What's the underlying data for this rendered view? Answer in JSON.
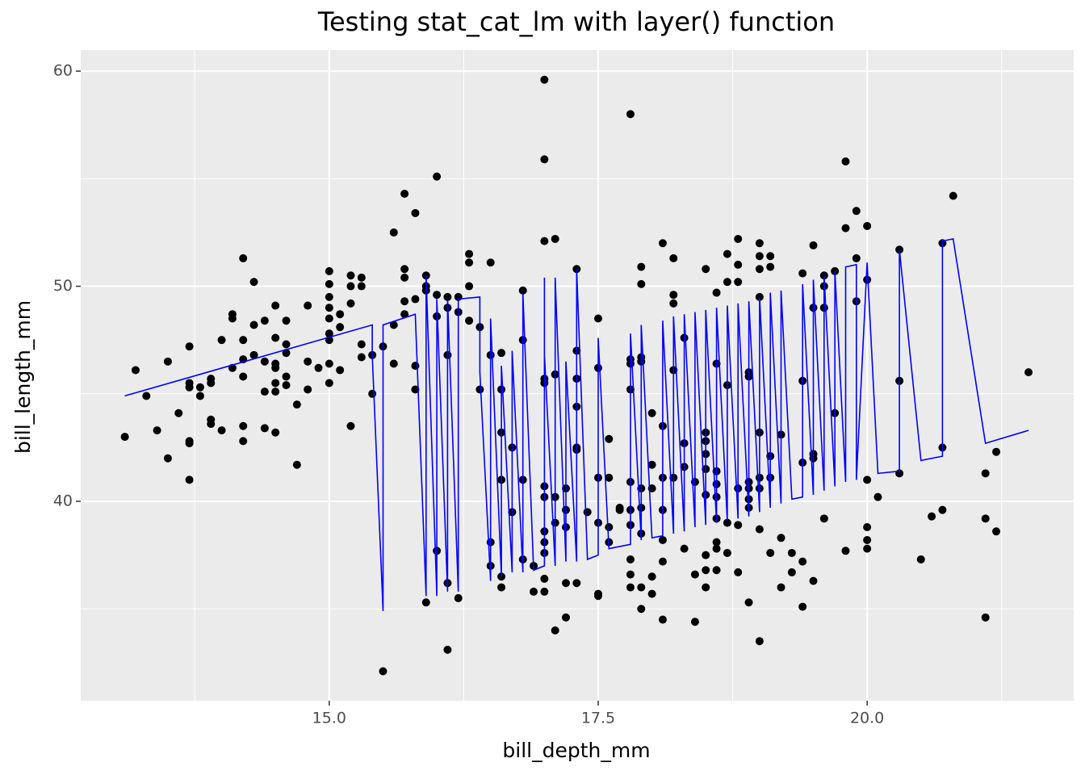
{
  "chart_data": {
    "type": "scatter",
    "title": "Testing stat_cat_lm with layer() function",
    "x_label": "bill_depth_mm",
    "y_label": "bill_length_mm",
    "xlim": [
      12.69,
      21.92
    ],
    "ylim": [
      30.73,
      60.98
    ],
    "xticks": [
      {
        "value": 15,
        "label": "15.0"
      },
      {
        "value": 17.5,
        "label": "17.5"
      },
      {
        "value": 20,
        "label": "20.0"
      }
    ],
    "yticks": [
      40,
      50,
      60
    ],
    "xminor": [
      13.75,
      16.25,
      18.75,
      21.25
    ],
    "yminor": [
      35,
      45,
      55
    ],
    "grid": true,
    "point_color": "#000000",
    "points": [
      [
        13.1,
        43.0
      ],
      [
        13.2,
        46.1
      ],
      [
        13.3,
        44.9
      ],
      [
        13.4,
        43.3
      ],
      [
        13.5,
        46.5
      ],
      [
        13.5,
        42.0
      ],
      [
        13.6,
        44.1
      ],
      [
        13.7,
        47.2
      ],
      [
        13.7,
        45.5
      ],
      [
        13.7,
        45.3
      ],
      [
        13.7,
        42.7
      ],
      [
        13.7,
        42.8
      ],
      [
        13.7,
        41.0
      ],
      [
        13.8,
        45.3
      ],
      [
        13.8,
        44.9
      ],
      [
        13.9,
        45.5
      ],
      [
        13.9,
        45.7
      ],
      [
        13.9,
        43.8
      ],
      [
        13.9,
        43.6
      ],
      [
        14.0,
        43.3
      ],
      [
        14.0,
        47.5
      ],
      [
        14.1,
        48.7
      ],
      [
        14.1,
        48.5
      ],
      [
        14.1,
        46.2
      ],
      [
        14.2,
        51.3
      ],
      [
        14.2,
        47.5
      ],
      [
        14.2,
        46.6
      ],
      [
        14.2,
        45.8
      ],
      [
        14.2,
        43.5
      ],
      [
        14.2,
        42.8
      ],
      [
        14.3,
        50.2
      ],
      [
        14.3,
        48.2
      ],
      [
        14.3,
        46.8
      ],
      [
        14.4,
        48.4
      ],
      [
        14.4,
        46.5
      ],
      [
        14.4,
        45.1
      ],
      [
        14.4,
        43.4
      ],
      [
        14.5,
        49.1
      ],
      [
        14.5,
        47.6
      ],
      [
        14.5,
        46.4
      ],
      [
        14.5,
        46.2
      ],
      [
        14.5,
        45.5
      ],
      [
        14.5,
        45.1
      ],
      [
        14.5,
        43.2
      ],
      [
        14.6,
        48.4
      ],
      [
        14.6,
        47.3
      ],
      [
        14.6,
        46.9
      ],
      [
        14.6,
        45.8
      ],
      [
        14.6,
        45.4
      ],
      [
        14.7,
        44.5
      ],
      [
        14.7,
        41.7
      ],
      [
        14.8,
        49.1
      ],
      [
        14.8,
        46.5
      ],
      [
        14.8,
        45.2
      ],
      [
        14.9,
        46.2
      ],
      [
        15.0,
        50.7
      ],
      [
        15.0,
        50.1
      ],
      [
        15.0,
        49.5
      ],
      [
        15.0,
        49.0
      ],
      [
        15.0,
        48.5
      ],
      [
        15.0,
        47.8
      ],
      [
        15.0,
        47.5
      ],
      [
        15.0,
        46.4
      ],
      [
        15.0,
        45.5
      ],
      [
        15.1,
        48.7
      ],
      [
        15.1,
        48.1
      ],
      [
        15.1,
        46.1
      ],
      [
        15.2,
        50.5
      ],
      [
        15.2,
        50.0
      ],
      [
        15.2,
        49.2
      ],
      [
        15.2,
        43.5
      ],
      [
        15.3,
        50.4
      ],
      [
        15.3,
        50.0
      ],
      [
        15.3,
        47.3
      ],
      [
        15.3,
        46.7
      ],
      [
        15.4,
        46.8
      ],
      [
        15.4,
        45.0
      ],
      [
        15.5,
        47.2
      ],
      [
        15.5,
        32.1
      ],
      [
        15.6,
        52.5
      ],
      [
        15.6,
        48.2
      ],
      [
        15.6,
        46.4
      ],
      [
        15.7,
        54.3
      ],
      [
        15.7,
        50.8
      ],
      [
        15.7,
        50.4
      ],
      [
        15.7,
        49.3
      ],
      [
        15.7,
        48.7
      ],
      [
        15.8,
        53.4
      ],
      [
        15.8,
        49.4
      ],
      [
        15.8,
        46.3
      ],
      [
        15.8,
        45.2
      ],
      [
        15.9,
        50.5
      ],
      [
        15.9,
        50.0
      ],
      [
        15.9,
        49.8
      ],
      [
        15.9,
        35.3
      ],
      [
        16.0,
        55.1
      ],
      [
        16.0,
        49.6
      ],
      [
        16.0,
        48.6
      ],
      [
        16.0,
        37.7
      ],
      [
        16.1,
        49.5
      ],
      [
        16.1,
        49.0
      ],
      [
        16.1,
        46.8
      ],
      [
        16.1,
        36.2
      ],
      [
        16.1,
        33.1
      ],
      [
        16.2,
        49.5
      ],
      [
        16.2,
        48.8
      ],
      [
        16.2,
        35.5
      ],
      [
        16.3,
        51.5
      ],
      [
        16.3,
        51.1
      ],
      [
        16.3,
        48.4
      ],
      [
        16.3,
        50.0
      ],
      [
        16.4,
        48.1
      ],
      [
        16.4,
        45.2
      ],
      [
        16.5,
        51.1
      ],
      [
        16.5,
        46.8
      ],
      [
        16.5,
        38.1
      ],
      [
        16.5,
        37.0
      ],
      [
        16.6,
        46.9
      ],
      [
        16.6,
        45.2
      ],
      [
        16.6,
        43.2
      ],
      [
        16.6,
        41.0
      ],
      [
        16.6,
        36.5
      ],
      [
        16.6,
        36.0
      ],
      [
        16.7,
        42.5
      ],
      [
        16.7,
        39.5
      ],
      [
        16.8,
        49.8
      ],
      [
        16.8,
        47.5
      ],
      [
        16.8,
        41.0
      ],
      [
        16.8,
        37.3
      ],
      [
        16.9,
        35.8
      ],
      [
        16.9,
        37.0
      ],
      [
        17.0,
        59.6
      ],
      [
        17.0,
        55.9
      ],
      [
        17.0,
        52.1
      ],
      [
        17.0,
        45.7
      ],
      [
        17.0,
        45.5
      ],
      [
        17.0,
        40.7
      ],
      [
        17.0,
        40.2
      ],
      [
        17.0,
        38.6
      ],
      [
        17.0,
        38.1
      ],
      [
        17.0,
        37.6
      ],
      [
        17.0,
        36.4
      ],
      [
        17.0,
        35.8
      ],
      [
        17.1,
        52.2
      ],
      [
        17.1,
        45.9
      ],
      [
        17.1,
        40.2
      ],
      [
        17.1,
        39.0
      ],
      [
        17.1,
        34.0
      ],
      [
        17.2,
        40.6
      ],
      [
        17.2,
        39.6
      ],
      [
        17.2,
        38.8
      ],
      [
        17.2,
        36.2
      ],
      [
        17.2,
        34.6
      ],
      [
        17.3,
        50.8
      ],
      [
        17.3,
        47.0
      ],
      [
        17.3,
        45.7
      ],
      [
        17.3,
        44.4
      ],
      [
        17.3,
        42.5
      ],
      [
        17.3,
        42.4
      ],
      [
        17.3,
        36.2
      ],
      [
        17.4,
        39.5
      ],
      [
        17.5,
        48.5
      ],
      [
        17.5,
        46.2
      ],
      [
        17.5,
        41.1
      ],
      [
        17.5,
        39.0
      ],
      [
        17.5,
        35.7
      ],
      [
        17.5,
        35.6
      ],
      [
        17.6,
        42.9
      ],
      [
        17.6,
        41.1
      ],
      [
        17.6,
        38.8
      ],
      [
        17.6,
        38.1
      ],
      [
        17.7,
        39.7
      ],
      [
        17.7,
        39.6
      ],
      [
        17.8,
        58.0
      ],
      [
        17.8,
        46.6
      ],
      [
        17.8,
        46.4
      ],
      [
        17.8,
        45.2
      ],
      [
        17.8,
        40.9
      ],
      [
        17.8,
        39.6
      ],
      [
        17.8,
        38.9
      ],
      [
        17.8,
        37.3
      ],
      [
        17.8,
        36.6
      ],
      [
        17.8,
        36.0
      ],
      [
        17.9,
        50.9
      ],
      [
        17.9,
        50.1
      ],
      [
        17.9,
        46.7
      ],
      [
        17.9,
        46.5
      ],
      [
        17.9,
        40.6
      ],
      [
        17.9,
        39.7
      ],
      [
        17.9,
        38.5
      ],
      [
        17.9,
        36.0
      ],
      [
        17.9,
        35.0
      ],
      [
        18.0,
        44.1
      ],
      [
        18.0,
        41.7
      ],
      [
        18.0,
        40.6
      ],
      [
        18.0,
        36.5
      ],
      [
        18.0,
        35.7
      ],
      [
        18.1,
        52.0
      ],
      [
        18.1,
        43.5
      ],
      [
        18.1,
        41.1
      ],
      [
        18.1,
        39.6
      ],
      [
        18.1,
        38.2
      ],
      [
        18.1,
        37.2
      ],
      [
        18.1,
        34.5
      ],
      [
        18.2,
        51.3
      ],
      [
        18.2,
        49.6
      ],
      [
        18.2,
        49.2
      ],
      [
        18.2,
        46.1
      ],
      [
        18.2,
        41.1
      ],
      [
        18.3,
        47.6
      ],
      [
        18.3,
        42.7
      ],
      [
        18.3,
        41.6
      ],
      [
        18.3,
        37.8
      ],
      [
        18.4,
        40.9
      ],
      [
        18.4,
        36.6
      ],
      [
        18.4,
        34.4
      ],
      [
        18.5,
        50.8
      ],
      [
        18.5,
        43.2
      ],
      [
        18.5,
        42.8
      ],
      [
        18.5,
        42.2
      ],
      [
        18.5,
        41.5
      ],
      [
        18.5,
        40.3
      ],
      [
        18.5,
        37.5
      ],
      [
        18.5,
        36.8
      ],
      [
        18.5,
        36.0
      ],
      [
        18.6,
        49.7
      ],
      [
        18.6,
        46.4
      ],
      [
        18.6,
        41.4
      ],
      [
        18.6,
        40.8
      ],
      [
        18.6,
        40.2
      ],
      [
        18.6,
        39.2
      ],
      [
        18.6,
        38.1
      ],
      [
        18.6,
        37.8
      ],
      [
        18.6,
        36.8
      ],
      [
        18.7,
        51.5
      ],
      [
        18.7,
        50.2
      ],
      [
        18.7,
        45.4
      ],
      [
        18.7,
        39.0
      ],
      [
        18.7,
        37.6
      ],
      [
        18.8,
        52.2
      ],
      [
        18.8,
        51.0
      ],
      [
        18.8,
        50.2
      ],
      [
        18.8,
        40.6
      ],
      [
        18.8,
        38.9
      ],
      [
        18.8,
        36.7
      ],
      [
        18.9,
        46.0
      ],
      [
        18.9,
        45.8
      ],
      [
        18.9,
        40.9
      ],
      [
        18.9,
        40.6
      ],
      [
        18.9,
        40.1
      ],
      [
        18.9,
        39.7
      ],
      [
        18.9,
        35.3
      ],
      [
        19.0,
        52.0
      ],
      [
        19.0,
        51.4
      ],
      [
        19.0,
        50.8
      ],
      [
        19.0,
        49.5
      ],
      [
        19.0,
        43.2
      ],
      [
        19.0,
        41.1
      ],
      [
        19.0,
        40.6
      ],
      [
        19.0,
        38.7
      ],
      [
        19.0,
        33.5
      ],
      [
        19.1,
        51.4
      ],
      [
        19.1,
        50.9
      ],
      [
        19.1,
        42.1
      ],
      [
        19.1,
        41.1
      ],
      [
        19.1,
        37.6
      ],
      [
        19.2,
        43.1
      ],
      [
        19.2,
        38.3
      ],
      [
        19.2,
        36.0
      ],
      [
        19.3,
        37.6
      ],
      [
        19.3,
        36.7
      ],
      [
        19.4,
        50.6
      ],
      [
        19.4,
        45.6
      ],
      [
        19.4,
        41.8
      ],
      [
        19.4,
        37.2
      ],
      [
        19.4,
        35.1
      ],
      [
        19.5,
        51.9
      ],
      [
        19.5,
        49.0
      ],
      [
        19.5,
        42.2
      ],
      [
        19.5,
        42.0
      ],
      [
        19.5,
        36.3
      ],
      [
        19.6,
        50.5
      ],
      [
        19.6,
        50.0
      ],
      [
        19.6,
        49.0
      ],
      [
        19.6,
        39.2
      ],
      [
        19.7,
        50.7
      ],
      [
        19.7,
        44.1
      ],
      [
        19.8,
        55.8
      ],
      [
        19.8,
        52.7
      ],
      [
        19.8,
        37.7
      ],
      [
        19.9,
        53.5
      ],
      [
        19.9,
        51.3
      ],
      [
        19.9,
        49.3
      ],
      [
        20.0,
        52.8
      ],
      [
        20.0,
        50.3
      ],
      [
        20.0,
        41.0
      ],
      [
        20.0,
        38.8
      ],
      [
        20.0,
        38.2
      ],
      [
        20.0,
        37.8
      ],
      [
        20.1,
        40.2
      ],
      [
        20.3,
        51.7
      ],
      [
        20.3,
        45.6
      ],
      [
        20.3,
        41.3
      ],
      [
        20.5,
        37.3
      ],
      [
        20.6,
        39.3
      ],
      [
        20.7,
        52.0
      ],
      [
        20.7,
        42.5
      ],
      [
        20.7,
        39.6
      ],
      [
        20.8,
        54.2
      ],
      [
        21.1,
        41.3
      ],
      [
        21.1,
        39.2
      ],
      [
        21.1,
        34.6
      ],
      [
        21.2,
        42.3
      ],
      [
        21.2,
        38.6
      ],
      [
        21.5,
        46.0
      ]
    ],
    "line": {
      "color": "#0000ff",
      "x": [
        13.1,
        15.4,
        15.4,
        15.5,
        15.5,
        15.8,
        15.9,
        15.9,
        16.0,
        16.0,
        16.1,
        16.1,
        16.2,
        16.2,
        16.4,
        16.4,
        16.5,
        16.5,
        16.6,
        16.6,
        16.7,
        16.7,
        16.8,
        16.8,
        16.9,
        17.0,
        17.0,
        17.0,
        17.1,
        17.1,
        17.2,
        17.2,
        17.3,
        17.3,
        17.4,
        17.5,
        17.5,
        17.6,
        17.8,
        17.8,
        17.9,
        17.9,
        18.0,
        18.1,
        18.1,
        18.2,
        18.2,
        18.3,
        18.3,
        18.4,
        18.4,
        18.5,
        18.5,
        18.6,
        18.6,
        18.7,
        18.7,
        18.8,
        18.8,
        18.9,
        18.9,
        19.0,
        19.0,
        19.1,
        19.1,
        19.2,
        19.2,
        19.3,
        19.4,
        19.4,
        19.5,
        19.5,
        19.6,
        19.6,
        19.7,
        19.7,
        19.8,
        19.8,
        19.9,
        19.9,
        20.0,
        20.1,
        20.3,
        20.3,
        20.5,
        20.7,
        20.7,
        20.8,
        21.1,
        21.5
      ],
      "y": [
        44.9,
        48.2,
        46.8,
        34.9,
        48.2,
        48.7,
        35.6,
        50.5,
        35.6,
        49.4,
        35.8,
        49.4,
        35.8,
        49.4,
        49.5,
        46.0,
        36.3,
        48.5,
        36.5,
        46.3,
        36.7,
        47.0,
        36.7,
        49.7,
        36.8,
        37.0,
        50.4,
        46.8,
        37.0,
        50.4,
        37.2,
        46.5,
        37.2,
        50.8,
        37.3,
        37.5,
        47.6,
        37.8,
        38.0,
        47.8,
        38.2,
        48.2,
        38.3,
        38.4,
        48.4,
        38.5,
        48.6,
        38.6,
        48.7,
        38.8,
        48.8,
        38.9,
        48.9,
        39.0,
        49.0,
        39.1,
        49.1,
        39.2,
        49.2,
        39.3,
        49.3,
        39.5,
        49.5,
        39.7,
        49.7,
        39.9,
        49.8,
        40.1,
        40.2,
        50.1,
        40.3,
        50.3,
        40.5,
        50.5,
        40.7,
        50.7,
        40.9,
        50.9,
        51.0,
        41.0,
        51.1,
        41.3,
        41.4,
        51.7,
        41.9,
        42.1,
        52.1,
        52.2,
        42.7,
        43.3
      ]
    }
  }
}
